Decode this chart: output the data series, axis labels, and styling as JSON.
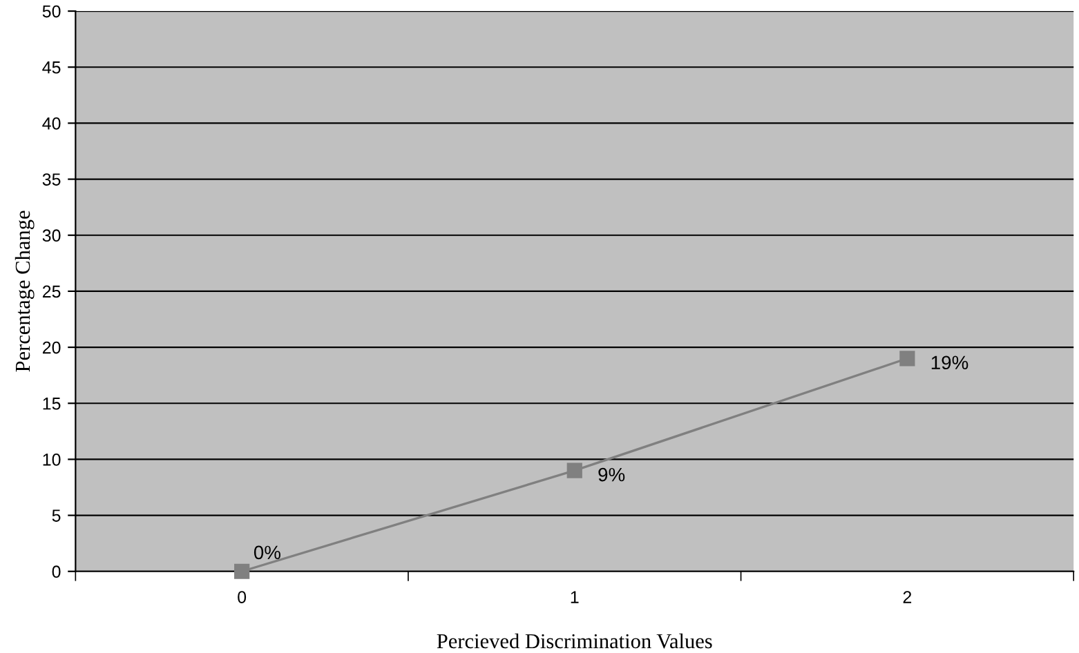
{
  "chart_data": {
    "type": "line",
    "xlabel": "Percieved Discrimination Values",
    "ylabel": "Percentage Change",
    "categories": [
      "0",
      "1",
      "2"
    ],
    "series": [
      {
        "color": "#808080",
        "values": [
          0,
          9,
          19
        ],
        "value_labels": [
          "0%",
          "9%",
          "19%"
        ]
      }
    ],
    "ylim": [
      0,
      50
    ],
    "yticks": [
      0,
      5,
      10,
      15,
      20,
      25,
      30,
      35,
      40,
      45,
      50
    ],
    "grid": "y",
    "marker": "square",
    "legend": false
  }
}
